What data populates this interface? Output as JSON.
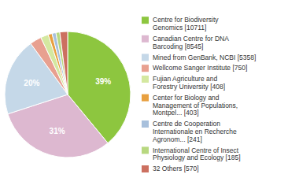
{
  "chart_data": {
    "type": "pie",
    "categories": [
      "Centre for Biodiversity\nGenomics [10711]",
      "Canadian Centre for DNA\nBarcoding [8545]",
      "Mined from GenBank, NCBI [5358]",
      "Wellcome Sanger Institute [750]",
      "Fujian Agriculture and\nForestry University [408]",
      "Center for Biology and\nManagement of Populations,\nMontpel... [403]",
      "Centre de Cooperation\nInternationale en Recherche\nAgronom... [241]",
      "International Centre of Insect\nPhysiology and Ecology [185]",
      "32 Others [570]"
    ],
    "values": [
      39,
      31,
      20,
      3,
      2,
      1,
      1,
      1,
      2
    ],
    "value_labels": [
      "39%",
      "31%",
      "20%",
      null,
      null,
      null,
      null,
      null,
      null
    ],
    "colors": [
      "#8dc63f",
      "#ddb8d0",
      "#c5d8e8",
      "#e8a090",
      "#d4e8a0",
      "#e8a040",
      "#a8c0dc",
      "#b8d880",
      "#cc7060"
    ],
    "data_labels": true,
    "legend": "right"
  }
}
